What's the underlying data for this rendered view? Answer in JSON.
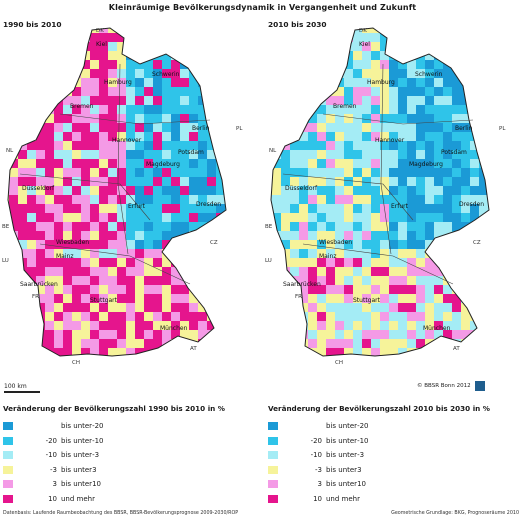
{
  "title": "Kleinräumige Bevölkerungsdynamik in Vergangenheit und Zukunft",
  "panels": {
    "left": {
      "label": "1990 bis 2010"
    },
    "right": {
      "label": "2010 bis 2030"
    }
  },
  "scalebar": "100 km",
  "credit": "© BBSR Bonn 2012",
  "legend": {
    "left_title": "Veränderung der Bevölkerungszahl 1990 bis 2010 in %",
    "right_title": "Veränderung der Bevölkerungszahl 2010 bis 2030 in %",
    "classes": [
      {
        "from": "",
        "mid": "bis unter",
        "to": "-20",
        "color": "#1b9ad6"
      },
      {
        "from": "-20",
        "mid": "bis unter",
        "to": "-10",
        "color": "#2fc4e9"
      },
      {
        "from": "-10",
        "mid": "bis unter",
        "to": "-3",
        "color": "#a4ecf5"
      },
      {
        "from": "-3",
        "mid": "bis unter",
        "to": "3",
        "color": "#f6f39a"
      },
      {
        "from": "3",
        "mid": "bis unter",
        "to": "10",
        "color": "#f49ae6"
      },
      {
        "from": "10",
        "mid": "und mehr",
        "to": "",
        "color": "#e5158d"
      }
    ]
  },
  "map_labels": {
    "left": [
      "Hamburg",
      "Bremen",
      "Hannover",
      "Berlin",
      "Potsdam",
      "Magdeburg",
      "Düsseldorf",
      "Erfurt",
      "Dresden",
      "Wiesbaden",
      "Mainz",
      "Stuttgart",
      "München",
      "Kiel",
      "Schwerin",
      "Saarbrücken"
    ],
    "right": [
      "Hamburg",
      "Bremen",
      "Hannover",
      "Berlin",
      "Potsdam",
      "Magdeburg",
      "Düsseldorf",
      "Erfurt",
      "Dresden",
      "Wiesbaden",
      "Mainz",
      "Stuttgart",
      "München",
      "Kiel",
      "Schwerin",
      "Saarbrücken"
    ]
  },
  "neighbours": [
    "DK",
    "NL",
    "BE",
    "LU",
    "FR",
    "CH",
    "AT",
    "CZ",
    "PL"
  ],
  "footer": {
    "left": "Datenbasis: Laufende Raumbeobachtung des BBSR, BBSR-Bevölkerungsprognose 2009-2030/ROP",
    "right": "Geometrische Grundlage: BKG, Prognoseräume 2010"
  }
}
